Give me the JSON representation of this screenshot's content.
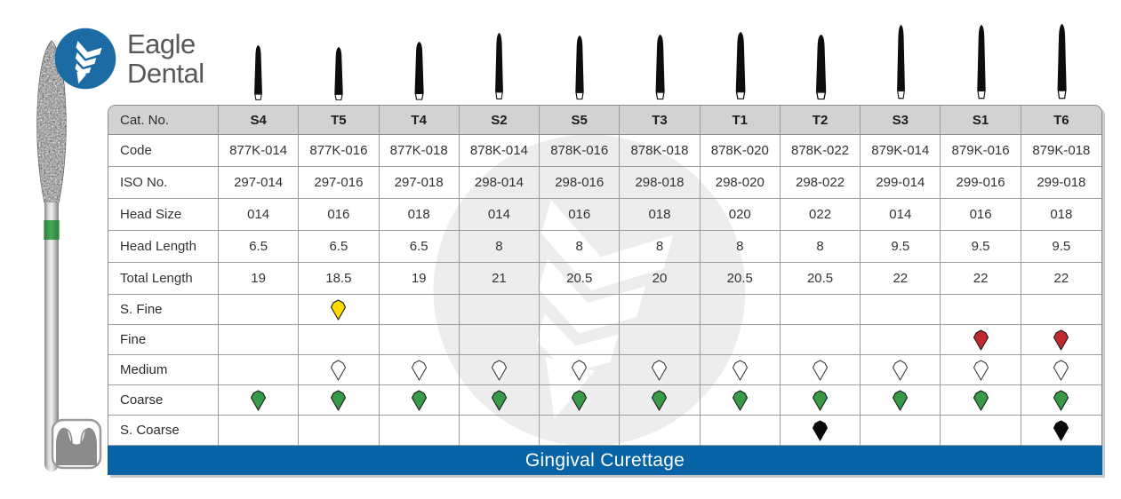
{
  "brand": {
    "line1": "Eagle",
    "line2": "Dental",
    "logo_blue": "#1c6ba4",
    "icon": "dental-bur-logo-icon"
  },
  "colors": {
    "header_gray": "#d2d2d2",
    "footer_blue": "#0663a5",
    "watermark_gray": "#ededed",
    "grit_yellow": "#ffd900",
    "grit_red": "#c02a2e",
    "grit_white": "#ffffff",
    "grit_green": "#379a46",
    "grit_black": "#0a0a0a"
  },
  "icons": {
    "logo": "dental-bur-logo-icon",
    "watermark": "dental-bur-watermark-icon",
    "grit_mark": "diamond-gem-icon",
    "bottom_left": "crown-prep-tooth-icon",
    "product": "diamond-bur-photo"
  },
  "table": {
    "corner_label": "Cat. No.",
    "columns": [
      "S4",
      "T5",
      "T4",
      "S2",
      "S5",
      "T3",
      "T1",
      "T2",
      "S3",
      "S1",
      "T6"
    ],
    "spec_rows": [
      {
        "label": "Code",
        "values": [
          "877K-014",
          "877K-016",
          "877K-018",
          "878K-014",
          "878K-016",
          "878K-018",
          "878K-020",
          "878K-022",
          "879K-014",
          "879K-016",
          "879K-018"
        ]
      },
      {
        "label": "ISO No.",
        "values": [
          "297-014",
          "297-016",
          "297-018",
          "298-014",
          "298-016",
          "298-018",
          "298-020",
          "298-022",
          "299-014",
          "299-016",
          "299-018"
        ]
      },
      {
        "label": "Head Size",
        "values": [
          "014",
          "016",
          "018",
          "014",
          "016",
          "018",
          "020",
          "022",
          "014",
          "016",
          "018"
        ]
      },
      {
        "label": "Head Length",
        "values": [
          "6.5",
          "6.5",
          "6.5",
          "8",
          "8",
          "8",
          "8",
          "8",
          "9.5",
          "9.5",
          "9.5"
        ]
      },
      {
        "label": "Total Length",
        "values": [
          "19",
          "18.5",
          "19",
          "21",
          "20.5",
          "20",
          "20.5",
          "20.5",
          "22",
          "22",
          "22"
        ]
      }
    ],
    "grit_rows": [
      {
        "label": "S. Fine",
        "color": "#ffd900",
        "stroke": "#1c1c1c",
        "marks": [
          0,
          1,
          0,
          0,
          0,
          0,
          0,
          0,
          0,
          0,
          0
        ]
      },
      {
        "label": "Fine",
        "color": "#c02a2e",
        "stroke": "#1c1c1c",
        "marks": [
          0,
          0,
          0,
          0,
          0,
          0,
          0,
          0,
          0,
          1,
          1
        ]
      },
      {
        "label": "Medium",
        "color": "#ffffff",
        "stroke": "#3a3a3a",
        "marks": [
          0,
          1,
          1,
          1,
          1,
          1,
          1,
          1,
          1,
          1,
          1
        ]
      },
      {
        "label": "Coarse",
        "color": "#379a46",
        "stroke": "#1c1c1c",
        "marks": [
          1,
          1,
          1,
          1,
          1,
          1,
          1,
          1,
          1,
          1,
          1
        ]
      },
      {
        "label": "S. Coarse",
        "color": "#0a0a0a",
        "stroke": "#0a0a0a",
        "marks": [
          0,
          0,
          0,
          0,
          0,
          0,
          0,
          1,
          0,
          0,
          1
        ]
      }
    ],
    "footer": "Gingival Curettage"
  }
}
